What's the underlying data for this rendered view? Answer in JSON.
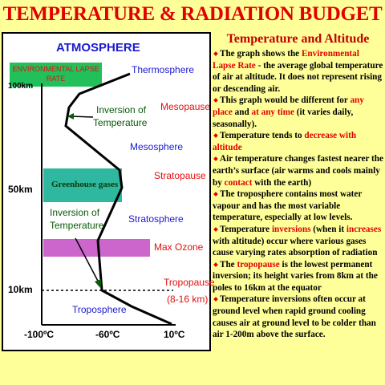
{
  "header": {
    "title": "TEMPERATURE & RADIATION BUDGET"
  },
  "diagram": {
    "heading": "ATMOSPHERE",
    "lapse_rate_label": "ENVIRONMENTAL LAPSE RATE",
    "y_labels": [
      "100km",
      "50km",
      "10km"
    ],
    "x_labels": [
      "-100ºC",
      "-60ºC",
      "10ºC"
    ],
    "layers": [
      "Thermosphere",
      "Mesopause",
      "Mesosphere",
      "Stratopause",
      "Stratosphere",
      "Max Ozone",
      "Tropopause",
      "(8-16 km)",
      "Troposphere"
    ],
    "upper_inversion": [
      "Inversion of",
      "Temperature"
    ],
    "lower_inversion": [
      "Inversion of",
      "Temperature"
    ],
    "greenhouse": "Greenhouse gases"
  },
  "notes": {
    "heading": "Temperature and Altitude",
    "bullets": [
      {
        "parts": [
          {
            "text": "The graph shows the "
          },
          {
            "text": "Environmental Lapse Rate",
            "em": true
          },
          {
            "text": " - the average global temperature of air at altitude. It does not represent rising or descending air."
          }
        ]
      },
      {
        "parts": [
          {
            "text": "This graph would be different for "
          },
          {
            "text": "any place",
            "em": true
          },
          {
            "text": " and "
          },
          {
            "text": "at any time",
            "em": true
          },
          {
            "text": " (it varies daily, seasonally)."
          }
        ]
      },
      {
        "parts": [
          {
            "text": "Temperature tends to "
          },
          {
            "text": "decrease with altitude",
            "em": true
          }
        ]
      },
      {
        "parts": [
          {
            "text": "Air temperature changes fastest nearer the earth’s surface (air warms and cools mainly by "
          },
          {
            "text": "contact",
            "em": true
          },
          {
            "text": " with the earth)"
          }
        ]
      },
      {
        "parts": [
          {
            "text": "The troposphere contains most water vapour and has the most variable temperature, especially at low levels."
          }
        ]
      },
      {
        "parts": [
          {
            "text": "Temperature "
          },
          {
            "text": "inversions",
            "em": true
          },
          {
            "text": " (when it "
          },
          {
            "text": "increases",
            "em": true
          },
          {
            "text": " with altitude) occur where various gases cause varying rates absorption of radiation"
          }
        ]
      },
      {
        "parts": [
          {
            "text": "The "
          },
          {
            "text": "tropopause",
            "em": true
          },
          {
            "text": " is the lowest permanent inversion; its height varies from 8km at the poles to 16km at the equator"
          }
        ]
      },
      {
        "parts": [
          {
            "text": "Temperature inversions often occur at ground level when rapid ground cooling causes air at ground level to be colder than air 1-200m above the surface."
          }
        ]
      }
    ]
  }
}
